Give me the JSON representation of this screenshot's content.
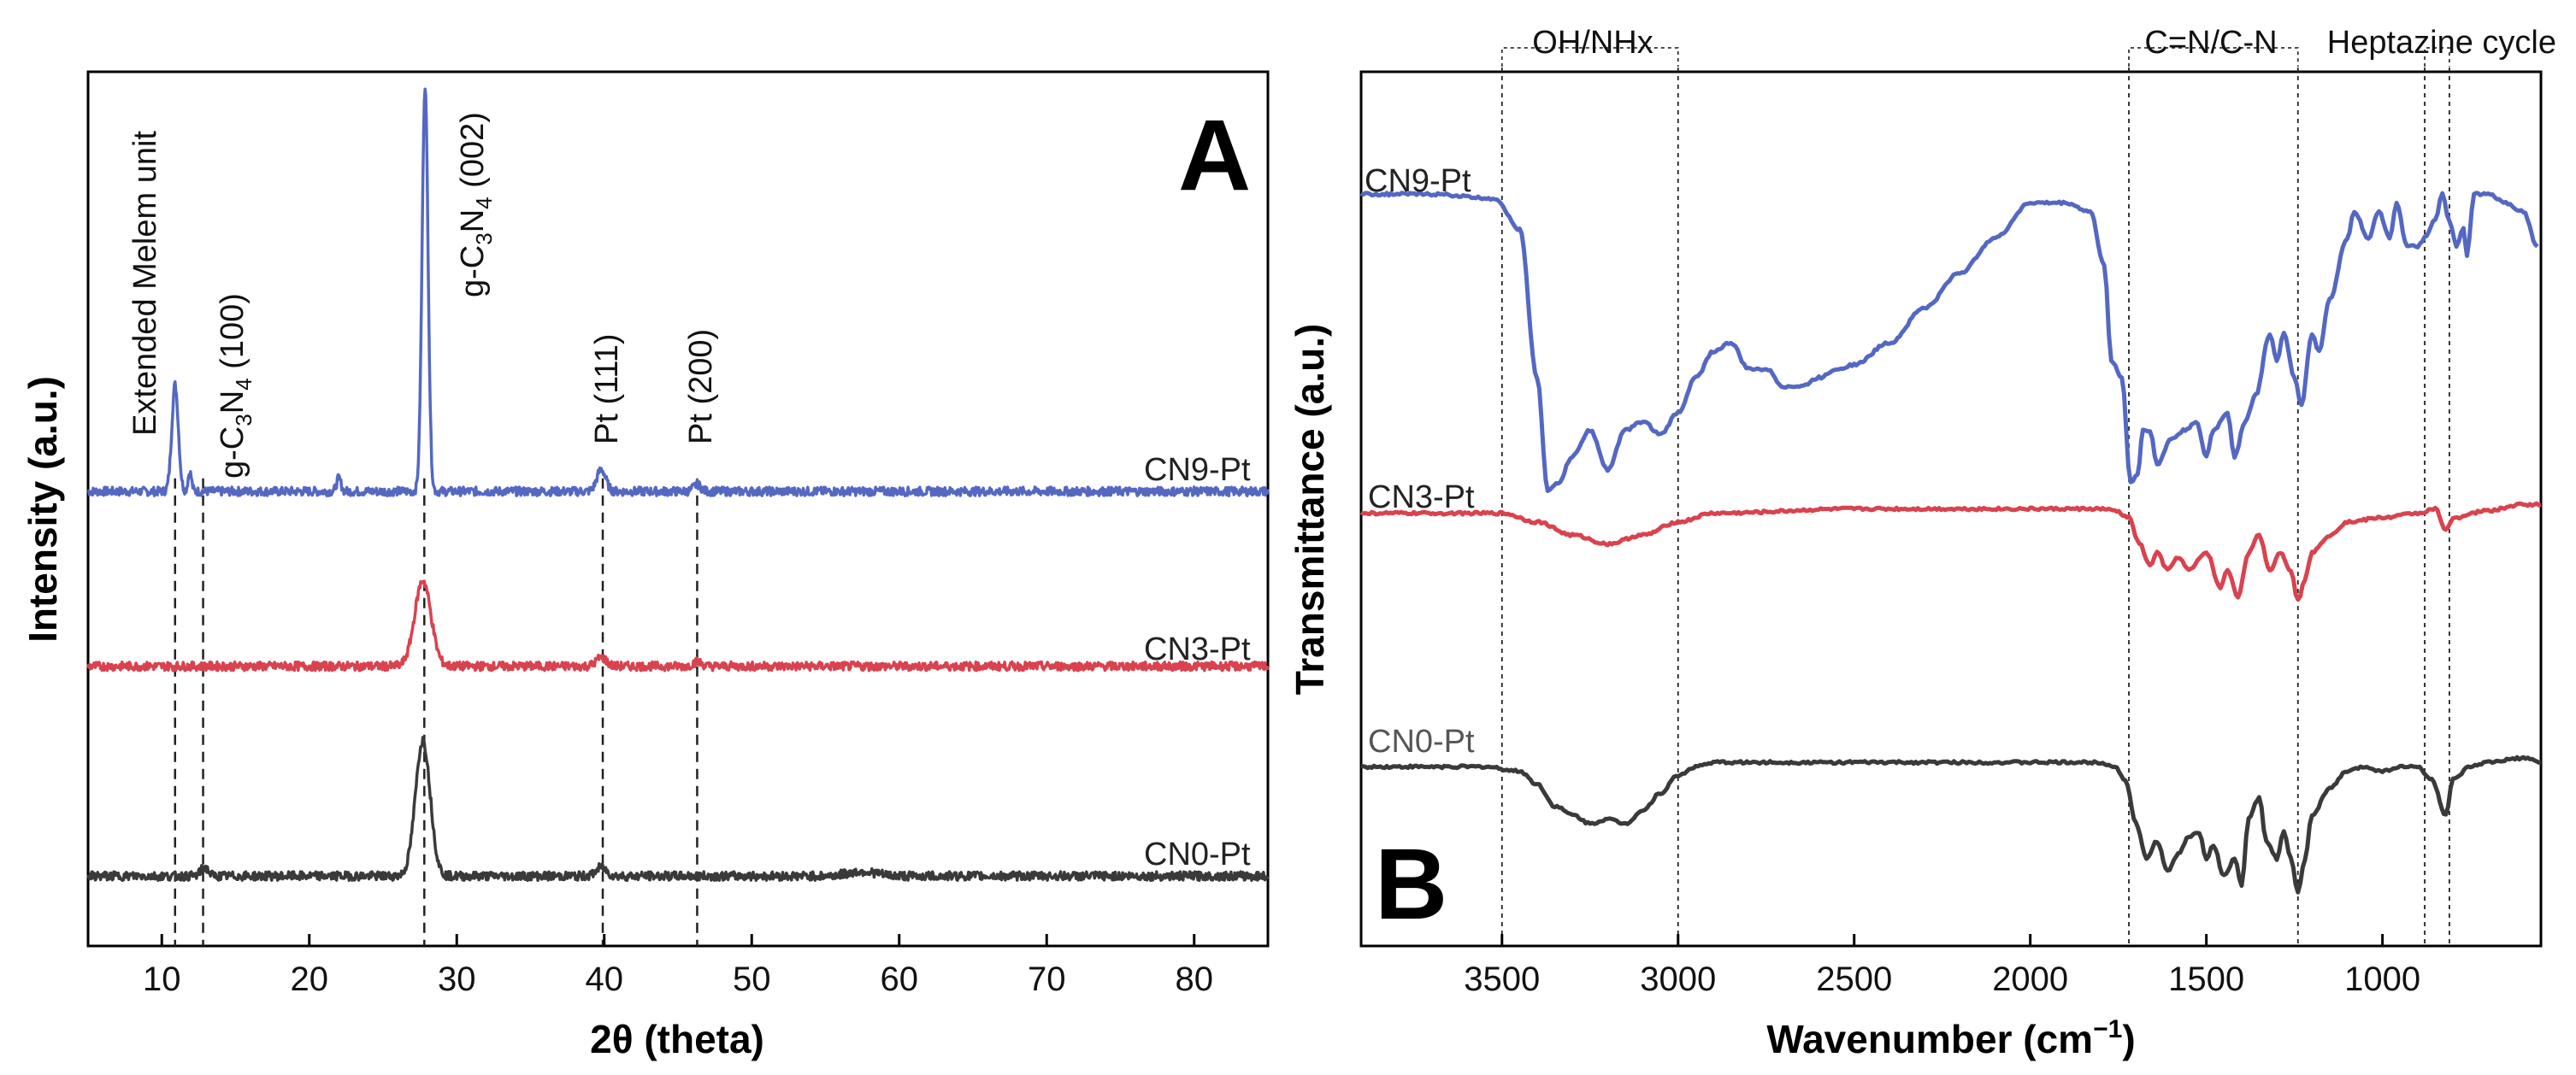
{
  "figure": {
    "colors": {
      "CN9-Pt": "#5468C2",
      "CN3-Pt": "#D9424F",
      "CN0-Pt": "#3A3A3A"
    }
  },
  "chart_data": [
    {
      "panel": "A",
      "type": "line",
      "xlabel": "2θ (theta)",
      "ylabel": "Intensity (a.u.)",
      "xlim": [
        5,
        85
      ],
      "xticks": [
        10,
        20,
        30,
        40,
        50,
        60,
        70,
        80
      ],
      "x_tick_labels": [
        "10",
        "20",
        "30",
        "40",
        "50",
        "60",
        "70",
        "80"
      ],
      "ylim": [
        0,
        10
      ],
      "y_ticks_shown": false,
      "series": [
        {
          "name": "CN9-Pt",
          "label": "CN9-Pt",
          "color": "#5468C2",
          "baseline": 5.2,
          "peaks": [
            {
              "x": 10.9,
              "h": 1.22,
              "w": 0.22
            },
            {
              "x": 11.9,
              "h": 0.22,
              "w": 0.12
            },
            {
              "x": 22.0,
              "h": 0.15,
              "w": 0.15
            },
            {
              "x": 27.85,
              "h": 4.65,
              "w": 0.2
            },
            {
              "x": 39.8,
              "h": 0.25,
              "w": 0.3
            },
            {
              "x": 46.3,
              "h": 0.08,
              "w": 0.25
            }
          ]
        },
        {
          "name": "CN3-Pt",
          "label": "CN3-Pt",
          "color": "#D9424F",
          "baseline": 3.2,
          "peaks": [
            {
              "x": 27.7,
              "h": 0.98,
              "w": 0.55
            },
            {
              "x": 39.8,
              "h": 0.1,
              "w": 0.35
            },
            {
              "x": 46.3,
              "h": 0.05,
              "w": 0.3
            }
          ]
        },
        {
          "name": "CN0-Pt",
          "label": "CN0-Pt",
          "color": "#3A3A3A",
          "baseline": 0.8,
          "peaks": [
            {
              "x": 27.7,
              "h": 1.55,
              "w": 0.5
            },
            {
              "x": 12.9,
              "h": 0.1,
              "w": 0.25
            },
            {
              "x": 39.8,
              "h": 0.1,
              "w": 0.35
            },
            {
              "x": 57.5,
              "h": 0.05,
              "w": 1.0
            }
          ]
        }
      ],
      "reference_lines": [
        10.9,
        12.8,
        27.8,
        39.9,
        46.3
      ],
      "annotations": [
        {
          "text": "Extended Melem unit",
          "x": 10.9
        },
        {
          "text": "g-C3N4 (100)",
          "x": 12.8
        },
        {
          "text": "g-C3N4 (002)",
          "x": 27.8
        },
        {
          "text": "Pt (111)",
          "x": 39.9
        },
        {
          "text": "Pt (200)",
          "x": 46.3
        }
      ],
      "formula": {
        "prefix": "g-C",
        "sub1": "3",
        "mid": "N",
        "sub2": "4"
      },
      "peak_suffixes": {
        "p100": " (100)",
        "p002": " (002)"
      }
    },
    {
      "panel": "B",
      "type": "line",
      "xlabel": "Wavenumber (cm",
      "xlabel_sup": "−1",
      "xlabel_close": ")",
      "ylabel": "Transmittance (a.u.)",
      "xlim": [
        3900,
        550
      ],
      "x_reversed": true,
      "xticks": [
        3500,
        3000,
        2500,
        2000,
        1500,
        1000
      ],
      "x_tick_labels": [
        "3500",
        "3000",
        "2500",
        "2000",
        "1500",
        "1000"
      ],
      "ylim": [
        0,
        10
      ],
      "y_ticks_shown": false,
      "series": [
        {
          "name": "CN9-Pt",
          "label": "CN9-Pt",
          "color": "#5468C2",
          "points": [
            [
              3900,
              8.6
            ],
            [
              3700,
              8.6
            ],
            [
              3520,
              8.55
            ],
            [
              3450,
              8.2
            ],
            [
              3400,
              6.5
            ],
            [
              3370,
              5.2
            ],
            [
              3340,
              5.3
            ],
            [
              3300,
              5.6
            ],
            [
              3250,
              5.9
            ],
            [
              3200,
              5.45
            ],
            [
              3150,
              5.9
            ],
            [
              3100,
              6.0
            ],
            [
              3050,
              5.85
            ],
            [
              3000,
              6.1
            ],
            [
              2950,
              6.5
            ],
            [
              2900,
              6.8
            ],
            [
              2850,
              6.9
            ],
            [
              2800,
              6.6
            ],
            [
              2750,
              6.6
            ],
            [
              2700,
              6.4
            ],
            [
              2650,
              6.4
            ],
            [
              2600,
              6.5
            ],
            [
              2550,
              6.6
            ],
            [
              2500,
              6.65
            ],
            [
              2400,
              6.9
            ],
            [
              2300,
              7.3
            ],
            [
              2200,
              7.7
            ],
            [
              2100,
              8.1
            ],
            [
              2000,
              8.5
            ],
            [
              1900,
              8.5
            ],
            [
              1830,
              8.4
            ],
            [
              1790,
              7.8
            ],
            [
              1770,
              6.7
            ],
            [
              1740,
              6.5
            ],
            [
              1715,
              5.3
            ],
            [
              1695,
              5.4
            ],
            [
              1680,
              5.9
            ],
            [
              1660,
              5.9
            ],
            [
              1640,
              5.5
            ],
            [
              1600,
              5.8
            ],
            [
              1560,
              5.9
            ],
            [
              1530,
              6.0
            ],
            [
              1500,
              5.6
            ],
            [
              1480,
              5.9
            ],
            [
              1440,
              6.1
            ],
            [
              1420,
              5.6
            ],
            [
              1390,
              6.0
            ],
            [
              1360,
              6.3
            ],
            [
              1320,
              7.0
            ],
            [
              1300,
              6.7
            ],
            [
              1280,
              7.0
            ],
            [
              1250,
              6.5
            ],
            [
              1230,
              6.2
            ],
            [
              1200,
              7.0
            ],
            [
              1180,
              6.8
            ],
            [
              1150,
              7.4
            ],
            [
              1100,
              8.1
            ],
            [
              1080,
              8.4
            ],
            [
              1040,
              8.1
            ],
            [
              1010,
              8.4
            ],
            [
              980,
              8.1
            ],
            [
              960,
              8.5
            ],
            [
              930,
              8.0
            ],
            [
              900,
              8.0
            ],
            [
              880,
              8.1
            ],
            [
              850,
              8.3
            ],
            [
              830,
              8.6
            ],
            [
              810,
              8.3
            ],
            [
              790,
              8.0
            ],
            [
              770,
              8.2
            ],
            [
              760,
              7.9
            ],
            [
              740,
              8.6
            ],
            [
              700,
              8.6
            ],
            [
              650,
              8.5
            ],
            [
              600,
              8.4
            ],
            [
              560,
              8.0
            ]
          ]
        },
        {
          "name": "CN3-Pt",
          "label": "CN3-Pt",
          "color": "#D9424F",
          "points": [
            [
              3900,
              4.95
            ],
            [
              3600,
              4.95
            ],
            [
              3500,
              4.95
            ],
            [
              3400,
              4.85
            ],
            [
              3300,
              4.7
            ],
            [
              3200,
              4.6
            ],
            [
              3100,
              4.7
            ],
            [
              3000,
              4.85
            ],
            [
              2900,
              4.95
            ],
            [
              2500,
              5.0
            ],
            [
              2000,
              5.0
            ],
            [
              1800,
              5.0
            ],
            [
              1760,
              4.98
            ],
            [
              1720,
              4.9
            ],
            [
              1690,
              4.6
            ],
            [
              1660,
              4.35
            ],
            [
              1640,
              4.5
            ],
            [
              1610,
              4.3
            ],
            [
              1580,
              4.45
            ],
            [
              1550,
              4.3
            ],
            [
              1500,
              4.5
            ],
            [
              1460,
              4.1
            ],
            [
              1440,
              4.3
            ],
            [
              1410,
              4.0
            ],
            [
              1380,
              4.5
            ],
            [
              1350,
              4.7
            ],
            [
              1320,
              4.3
            ],
            [
              1290,
              4.5
            ],
            [
              1260,
              4.3
            ],
            [
              1240,
              3.95
            ],
            [
              1220,
              4.2
            ],
            [
              1200,
              4.5
            ],
            [
              1150,
              4.7
            ],
            [
              1100,
              4.85
            ],
            [
              1000,
              4.9
            ],
            [
              900,
              4.95
            ],
            [
              850,
              5.0
            ],
            [
              820,
              4.75
            ],
            [
              800,
              4.9
            ],
            [
              700,
              4.98
            ],
            [
              600,
              5.05
            ],
            [
              550,
              5.05
            ]
          ]
        },
        {
          "name": "CN0-Pt",
          "label": "CN0-Pt",
          "color": "#3A3A3A",
          "points": [
            [
              3900,
              2.05
            ],
            [
              3700,
              2.05
            ],
            [
              3550,
              2.05
            ],
            [
              3450,
              2.0
            ],
            [
              3400,
              1.85
            ],
            [
              3350,
              1.6
            ],
            [
              3300,
              1.5
            ],
            [
              3250,
              1.4
            ],
            [
              3200,
              1.45
            ],
            [
              3150,
              1.4
            ],
            [
              3100,
              1.55
            ],
            [
              3050,
              1.75
            ],
            [
              3000,
              1.95
            ],
            [
              2950,
              2.05
            ],
            [
              2900,
              2.1
            ],
            [
              2500,
              2.1
            ],
            [
              2000,
              2.1
            ],
            [
              1800,
              2.1
            ],
            [
              1760,
              2.05
            ],
            [
              1730,
              1.9
            ],
            [
              1700,
              1.4
            ],
            [
              1670,
              1.0
            ],
            [
              1640,
              1.2
            ],
            [
              1610,
              0.85
            ],
            [
              1580,
              1.05
            ],
            [
              1550,
              1.25
            ],
            [
              1520,
              1.3
            ],
            [
              1500,
              1.0
            ],
            [
              1480,
              1.15
            ],
            [
              1450,
              0.8
            ],
            [
              1420,
              1.0
            ],
            [
              1400,
              0.7
            ],
            [
              1380,
              1.45
            ],
            [
              1350,
              1.7
            ],
            [
              1330,
              1.2
            ],
            [
              1300,
              1.0
            ],
            [
              1280,
              1.3
            ],
            [
              1260,
              1.0
            ],
            [
              1240,
              0.6
            ],
            [
              1220,
              1.0
            ],
            [
              1200,
              1.5
            ],
            [
              1150,
              1.8
            ],
            [
              1100,
              2.0
            ],
            [
              1050,
              2.05
            ],
            [
              1000,
              2.0
            ],
            [
              950,
              2.05
            ],
            [
              900,
              2.05
            ],
            [
              860,
              1.9
            ],
            [
              820,
              1.5
            ],
            [
              800,
              1.9
            ],
            [
              750,
              2.05
            ],
            [
              700,
              2.1
            ],
            [
              600,
              2.15
            ],
            [
              550,
              2.1
            ]
          ]
        }
      ],
      "reference_lines": [
        3500,
        3000,
        1720,
        1240,
        880,
        810
      ],
      "bands": [
        {
          "text": "OH/NHx",
          "from": 3500,
          "to": 3000
        },
        {
          "text": "C=N/C-N",
          "from": 1720,
          "to": 1240
        },
        {
          "text": "Heptazine cycle",
          "from": 880,
          "to": 810
        }
      ]
    }
  ]
}
